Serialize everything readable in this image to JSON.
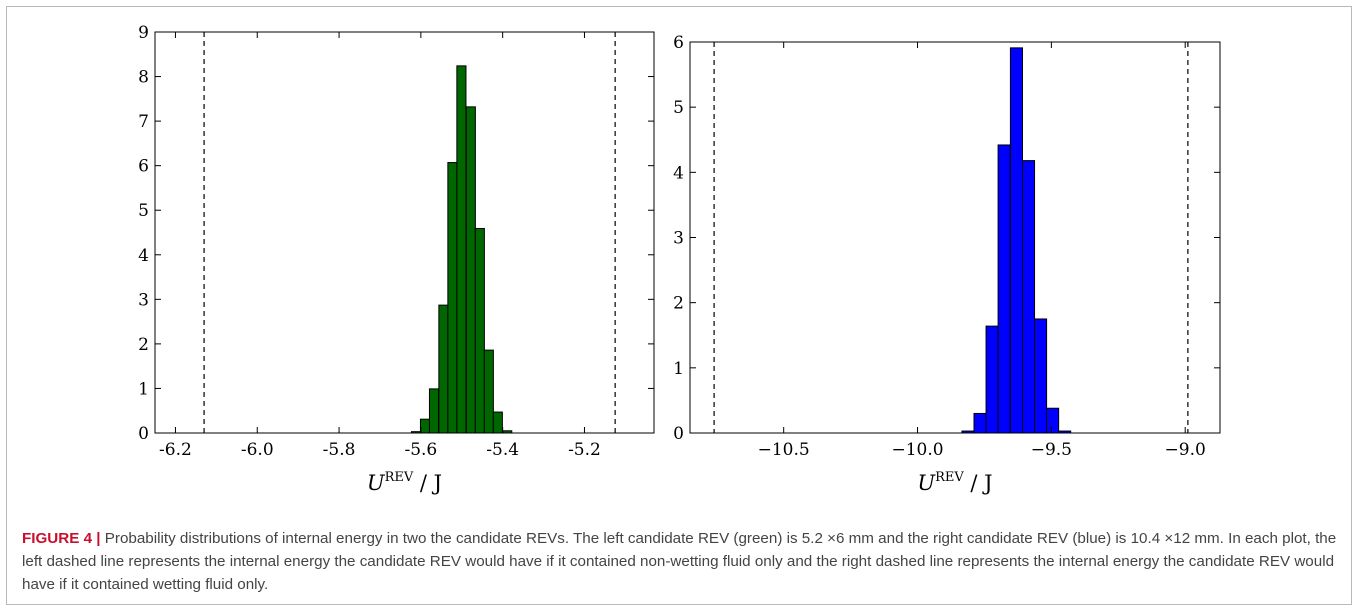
{
  "chart_data": [
    {
      "type": "bar",
      "color": "#006600",
      "xlim": [
        -6.25,
        -5.03
      ],
      "ylim": [
        0,
        9
      ],
      "bin_width": 0.0223,
      "xticks": [
        "-6.2",
        "-6.0",
        "-5.8",
        "-5.6",
        "-5.4",
        "-5.2"
      ],
      "xtick_values": [
        -6.2,
        -6.0,
        -5.8,
        -5.6,
        -5.4,
        -5.2
      ],
      "yticks": [
        "0",
        "1",
        "2",
        "3",
        "4",
        "5",
        "6",
        "7",
        "8",
        "9"
      ],
      "ytick_values": [
        0,
        1,
        2,
        3,
        4,
        5,
        6,
        7,
        8,
        9
      ],
      "xlabel_main": "U",
      "xlabel_sup": "REV",
      "xlabel_unit": " / J",
      "vlines": [
        -6.13,
        -5.125
      ],
      "bins": [
        {
          "x": -5.623,
          "y": 0.03
        },
        {
          "x": -5.601,
          "y": 0.31
        },
        {
          "x": -5.579,
          "y": 0.99
        },
        {
          "x": -5.556,
          "y": 2.87
        },
        {
          "x": -5.534,
          "y": 6.07
        },
        {
          "x": -5.512,
          "y": 8.24
        },
        {
          "x": -5.489,
          "y": 7.32
        },
        {
          "x": -5.467,
          "y": 4.59
        },
        {
          "x": -5.445,
          "y": 1.86
        },
        {
          "x": -5.423,
          "y": 0.47
        },
        {
          "x": -5.4,
          "y": 0.05
        }
      ]
    },
    {
      "type": "bar",
      "color": "#0000ff",
      "xlim": [
        -10.85,
        -8.87
      ],
      "ylim": [
        0,
        6
      ],
      "bin_width": 0.0452,
      "xticks": [
        "−10.5",
        "−10.0",
        "−9.5",
        "−9.0"
      ],
      "xtick_values": [
        -10.5,
        -10.0,
        -9.5,
        -9.0
      ],
      "yticks": [
        "0",
        "1",
        "2",
        "3",
        "4",
        "5",
        "6"
      ],
      "ytick_values": [
        0,
        1,
        2,
        3,
        4,
        5,
        6
      ],
      "xlabel_main": "U",
      "xlabel_sup": "REV",
      "xlabel_unit": " / J",
      "vlines": [
        -10.76,
        -8.99
      ],
      "bins": [
        {
          "x": -9.834,
          "y": 0.03
        },
        {
          "x": -9.789,
          "y": 0.3
        },
        {
          "x": -9.744,
          "y": 1.64
        },
        {
          "x": -9.699,
          "y": 4.42
        },
        {
          "x": -9.653,
          "y": 5.91
        },
        {
          "x": -9.608,
          "y": 4.18
        },
        {
          "x": -9.563,
          "y": 1.75
        },
        {
          "x": -9.518,
          "y": 0.38
        },
        {
          "x": -9.473,
          "y": 0.03
        }
      ]
    }
  ],
  "caption": {
    "label": "FIGURE 4 |",
    "text": "Probability distributions of internal energy in two the candidate REVs. The left candidate REV (green) is 5.2 ×6 mm and the right candidate REV (blue) is 10.4 ×12 mm. In each plot, the left dashed line represents the internal energy the candidate REV would have if it contained non-wetting fluid only and the right dashed line represents the internal energy the candidate REV would have if it contained wetting fluid only."
  }
}
